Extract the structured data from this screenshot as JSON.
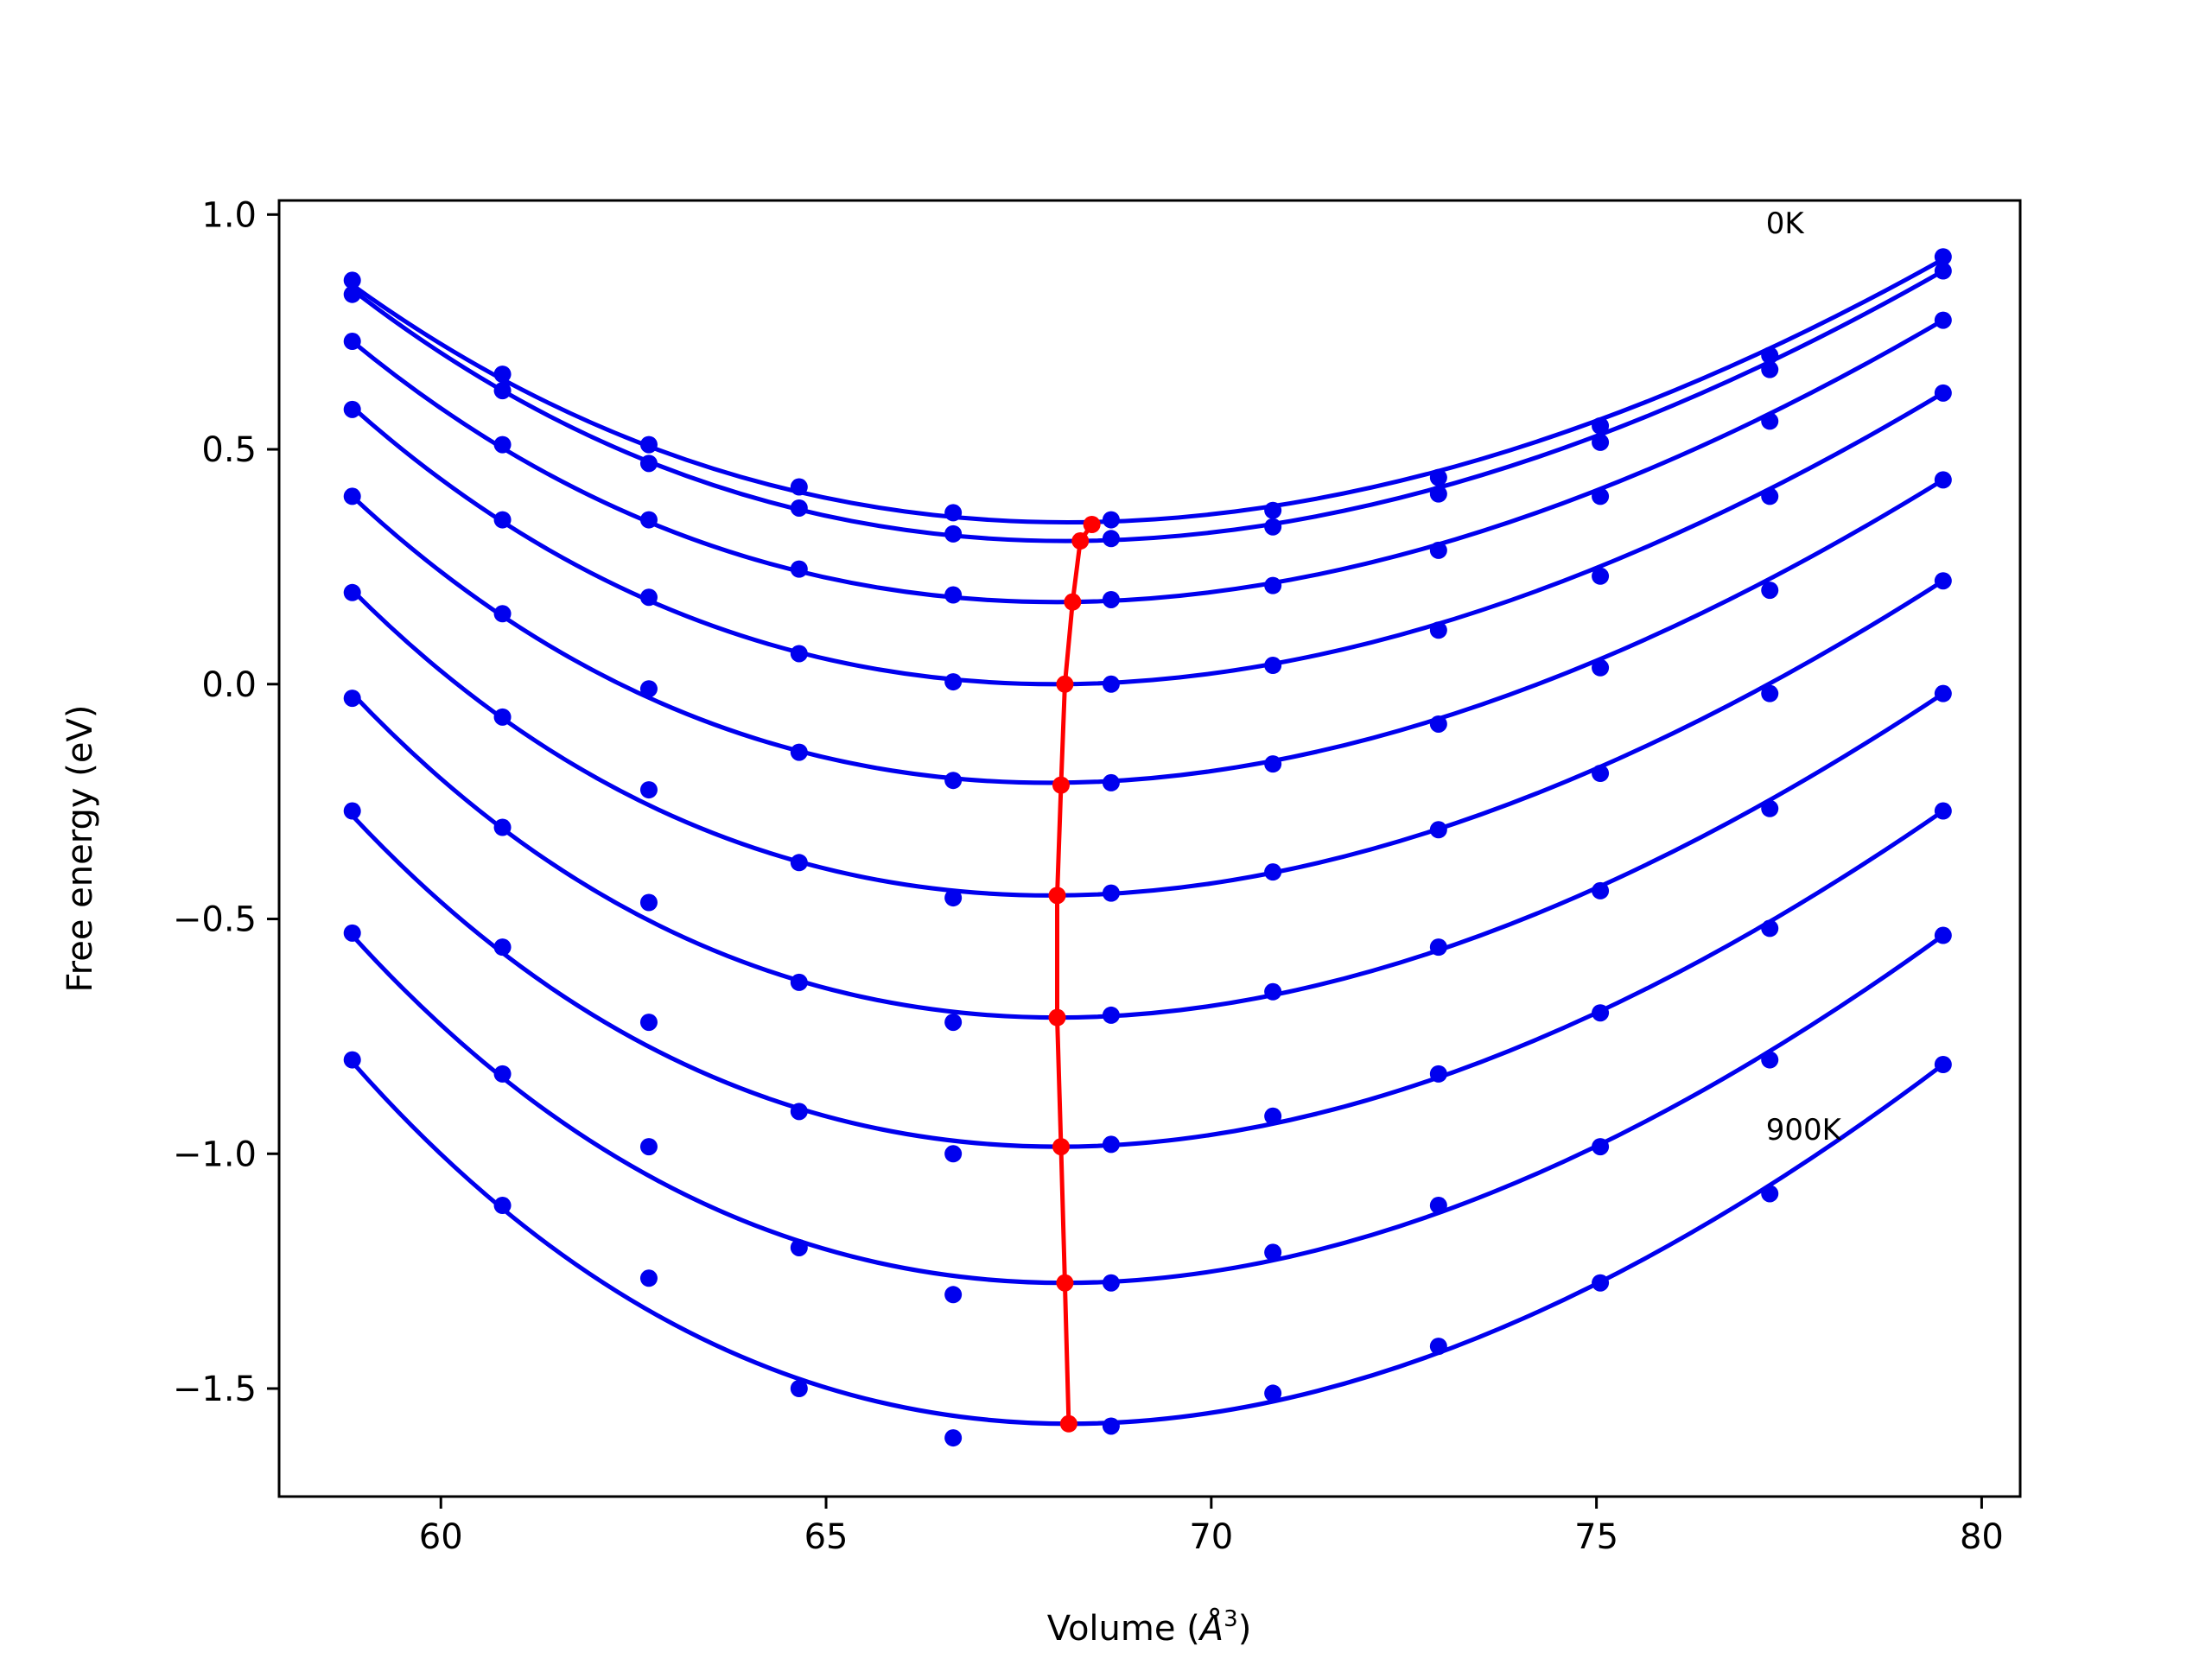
{
  "chart_data": {
    "type": "line",
    "xlabel": "Volume (",
    "xlabel_unit": "Å",
    "xlabel_sup": "3",
    "xlabel_close": ")",
    "ylabel": "Free energy (eV)",
    "xlim": [
      57.9,
      80.5
    ],
    "ylim": [
      -1.73,
      1.03
    ],
    "xticks": [
      60,
      65,
      70,
      75,
      80
    ],
    "xtick_labels": [
      "60",
      "65",
      "70",
      "75",
      "80"
    ],
    "yticks": [
      -1.5,
      -1.0,
      -0.5,
      0.0,
      0.5,
      1.0
    ],
    "ytick_labels": [
      "−1.5",
      "−1.0",
      "−0.5",
      "0.0",
      "0.5",
      "1.0"
    ],
    "grid": false,
    "annotations": [
      {
        "text": "0K",
        "x": 77.2,
        "y": 0.96
      },
      {
        "text": "900K",
        "x": 77.2,
        "y": -0.97
      }
    ],
    "colors": {
      "fit": "#0000ee",
      "points": "#0000ee",
      "minimum": "#ff0000",
      "axes": "#000000"
    },
    "volumes": [
      58.85,
      60.8,
      62.7,
      64.65,
      66.65,
      68.7,
      70.8,
      72.95,
      75.05,
      77.25,
      79.5
    ],
    "series": [
      {
        "points": [
          0.86,
          0.66,
          0.51,
          0.42,
          0.365,
          0.35,
          0.37,
          0.44,
          0.55,
          0.7,
          0.91
        ],
        "fit": [
          58.85,
          79.5,
          0.85,
          68.4,
          0.345,
          0.905
        ]
      },
      {
        "points": [
          0.83,
          0.625,
          0.47,
          0.375,
          0.32,
          0.31,
          0.335,
          0.405,
          0.515,
          0.67,
          0.88
        ],
        "fit": [
          58.85,
          79.5,
          0.84,
          68.3,
          0.305,
          0.88
        ]
      },
      {
        "points": [
          0.73,
          0.51,
          0.35,
          0.245,
          0.19,
          0.18,
          0.21,
          0.285,
          0.4,
          0.56,
          0.775
        ],
        "fit": [
          58.85,
          79.5,
          0.73,
          68.2,
          0.175,
          0.775
        ]
      },
      {
        "points": [
          0.585,
          0.35,
          0.185,
          0.065,
          0.005,
          0.0,
          0.04,
          0.115,
          0.23,
          0.4,
          0.62
        ],
        "fit": [
          58.85,
          79.5,
          0.59,
          68.1,
          0.0,
          0.62
        ]
      },
      {
        "points": [
          0.4,
          0.15,
          -0.01,
          -0.145,
          -0.205,
          -0.21,
          -0.17,
          -0.085,
          0.035,
          0.2,
          0.435
        ],
        "fit": [
          58.85,
          79.5,
          0.4,
          68.05,
          -0.21,
          0.435
        ]
      },
      {
        "points": [
          0.195,
          -0.07,
          -0.225,
          -0.38,
          -0.455,
          -0.445,
          -0.4,
          -0.31,
          -0.19,
          -0.02,
          0.22
        ],
        "fit": [
          58.85,
          79.5,
          0.2,
          68.0,
          -0.45,
          0.22
        ]
      },
      {
        "points": [
          -0.03,
          -0.305,
          -0.465,
          -0.635,
          -0.72,
          -0.705,
          -0.655,
          -0.56,
          -0.44,
          -0.265,
          -0.02
        ],
        "fit": [
          58.85,
          79.5,
          -0.02,
          68.0,
          -0.71,
          -0.02
        ]
      },
      {
        "points": [
          -0.27,
          -0.56,
          -0.72,
          -0.91,
          -1.0,
          -0.98,
          -0.92,
          -0.83,
          -0.7,
          -0.52,
          -0.27
        ],
        "fit": [
          58.85,
          79.5,
          -0.28,
          68.05,
          -0.985,
          -0.27
        ]
      },
      {
        "points": [
          -0.53,
          -0.83,
          -0.985,
          -1.2,
          -1.3,
          -1.275,
          -1.21,
          -1.11,
          -0.985,
          -0.8,
          -0.535
        ],
        "fit": [
          58.85,
          79.5,
          -0.535,
          68.1,
          -1.275,
          -0.535
        ]
      },
      {
        "points": [
          -0.8,
          -1.11,
          -1.265,
          -1.5,
          -1.605,
          -1.58,
          -1.51,
          -1.41,
          -1.275,
          -1.085,
          -0.81
        ],
        "fit": [
          58.85,
          79.5,
          -0.805,
          68.15,
          -1.575,
          -0.81
        ]
      }
    ],
    "minimum_curve": {
      "x": [
        68.45,
        68.3,
        68.2,
        68.1,
        68.05,
        68.0,
        68.0,
        68.05,
        68.1,
        68.15
      ],
      "y": [
        0.34,
        0.305,
        0.175,
        0.0,
        -0.215,
        -0.45,
        -0.71,
        -0.985,
        -1.275,
        -1.575
      ]
    }
  }
}
